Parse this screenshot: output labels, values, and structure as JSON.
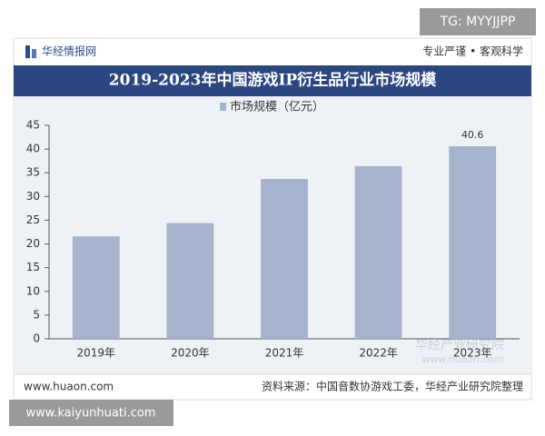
{
  "badge_top": "TG: MYYJJPP",
  "header": {
    "logo": "华经情报网",
    "slogan": "专业严谨 • 客观科学"
  },
  "chart_data": {
    "type": "bar",
    "title": "2019-2023年中国游戏IP衍生品行业市场规模",
    "categories": [
      "2019年",
      "2020年",
      "2021年",
      "2022年",
      "2023年"
    ],
    "series": [
      {
        "name": "市场规模（亿元）",
        "color": "#a5b3cc",
        "values": [
          21.6,
          24.4,
          33.7,
          36.4,
          40.6
        ],
        "value_labels": [
          null,
          null,
          null,
          null,
          "40.6"
        ]
      }
    ],
    "ylim": [
      0,
      45
    ],
    "yticks": [
      0,
      5,
      10,
      15,
      20,
      25,
      30,
      35,
      40,
      45
    ],
    "grid": false,
    "legend": "top"
  },
  "watermark": {
    "name": "华经产业研究院",
    "url": "www.huaon.com"
  },
  "footer": {
    "site": "www.huaon.com",
    "source": "资料来源：中国音数协游戏工委，华经产业研究院整理"
  },
  "badge_bottom": "www.kaiyunhuati.com"
}
